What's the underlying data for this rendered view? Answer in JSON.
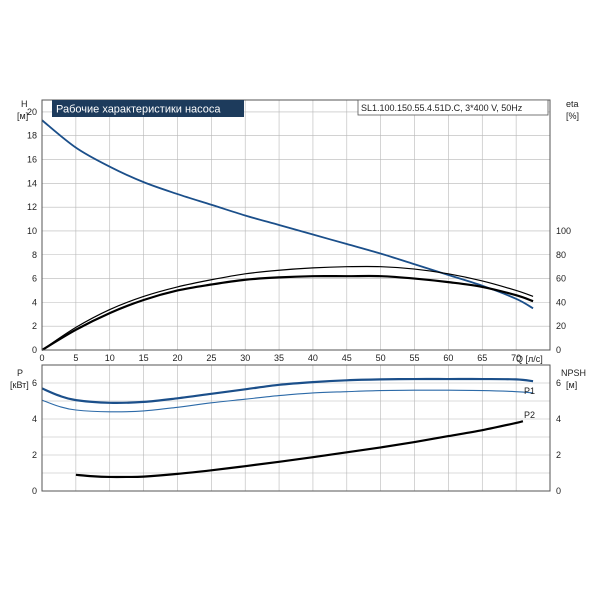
{
  "header": {
    "title": "Рабочие характеристики насоса",
    "model": "SL1.100.150.55.4.51D.C, 3*400 V, 50Hz"
  },
  "colors": {
    "head_curve": "#1b4f8a",
    "eta_curves": "#000000",
    "p1_curve": "#1b4f8a",
    "p2_curve": "#2c6aa8",
    "npsh_curve": "#000000",
    "title_bg": "#1d3b5c",
    "grid": "#b8b8b8"
  },
  "chart_data": [
    {
      "type": "line",
      "name": "top",
      "x_axis": {
        "label": "Q [л/с]",
        "ticks": [
          0,
          5,
          10,
          15,
          20,
          25,
          30,
          35,
          40,
          45,
          50,
          55,
          60,
          65,
          70
        ],
        "range": [
          0,
          75
        ]
      },
      "y_left": {
        "label": "H",
        "unit": "[м]",
        "ticks": [
          0,
          2,
          4,
          6,
          8,
          10,
          12,
          14,
          16,
          18,
          20
        ],
        "range": [
          0,
          21
        ]
      },
      "y_right": {
        "label": "eta",
        "unit": "[%]",
        "ticks": [
          0,
          20,
          40,
          60,
          80,
          100
        ],
        "range": [
          0,
          210
        ]
      },
      "grid": true,
      "series": [
        {
          "axis": "left",
          "role": "head",
          "x": [
            0,
            5,
            10,
            15,
            20,
            25,
            30,
            35,
            40,
            45,
            50,
            55,
            60,
            65,
            70,
            72.5
          ],
          "y": [
            19.3,
            17.0,
            15.4,
            14.1,
            13.1,
            12.2,
            11.3,
            10.5,
            9.7,
            8.9,
            8.1,
            7.2,
            6.3,
            5.4,
            4.3,
            3.5
          ]
        },
        {
          "axis": "right",
          "role": "eta-upper",
          "x": [
            0,
            5,
            10,
            15,
            20,
            25,
            30,
            35,
            40,
            45,
            50,
            55,
            60,
            65,
            70,
            72.5
          ],
          "y": [
            0,
            19,
            34,
            45,
            53,
            59,
            64,
            67,
            69,
            70,
            70,
            68,
            64,
            58,
            50,
            45
          ]
        },
        {
          "axis": "right",
          "role": "eta-lower",
          "x": [
            0,
            5,
            10,
            15,
            20,
            25,
            30,
            35,
            40,
            45,
            50,
            55,
            60,
            65,
            70,
            72.5
          ],
          "y": [
            0,
            17,
            31,
            42,
            50,
            55,
            59,
            61,
            62,
            62,
            62,
            60,
            57,
            53,
            46,
            41
          ]
        }
      ]
    },
    {
      "type": "line",
      "name": "bottom",
      "x_axis": {
        "range": [
          0,
          75
        ]
      },
      "y_left": {
        "label": "P",
        "unit": "[кВт]",
        "ticks": [
          0,
          2,
          4,
          6
        ],
        "range": [
          0,
          7
        ]
      },
      "y_right": {
        "label": "NPSH",
        "unit": "[м]",
        "ticks": [
          0,
          2,
          4,
          6
        ],
        "range": [
          0,
          7
        ]
      },
      "grid": true,
      "series": [
        {
          "axis": "left",
          "name": "P1",
          "x": [
            0,
            2.5,
            5,
            10,
            15,
            20,
            25,
            30,
            35,
            40,
            45,
            50,
            55,
            60,
            65,
            70,
            72.5
          ],
          "y": [
            5.7,
            5.3,
            5.05,
            4.9,
            4.95,
            5.15,
            5.4,
            5.65,
            5.9,
            6.05,
            6.15,
            6.2,
            6.22,
            6.22,
            6.22,
            6.2,
            6.1
          ]
        },
        {
          "axis": "left",
          "name": "P2",
          "x": [
            0,
            2.5,
            5,
            10,
            15,
            20,
            25,
            30,
            35,
            40,
            45,
            50,
            55,
            60,
            65,
            70,
            72.5
          ],
          "y": [
            5.05,
            4.7,
            4.5,
            4.4,
            4.45,
            4.65,
            4.9,
            5.1,
            5.3,
            5.45,
            5.52,
            5.58,
            5.6,
            5.6,
            5.58,
            5.52,
            5.45
          ]
        },
        {
          "axis": "right",
          "role": "npsh",
          "x": [
            5,
            7.5,
            10,
            12.5,
            15,
            20,
            25,
            30,
            35,
            40,
            45,
            50,
            55,
            60,
            65,
            70,
            71
          ],
          "y": [
            0.9,
            0.82,
            0.78,
            0.78,
            0.8,
            0.95,
            1.15,
            1.38,
            1.62,
            1.88,
            2.15,
            2.42,
            2.72,
            3.05,
            3.38,
            3.78,
            3.88
          ]
        }
      ]
    }
  ]
}
